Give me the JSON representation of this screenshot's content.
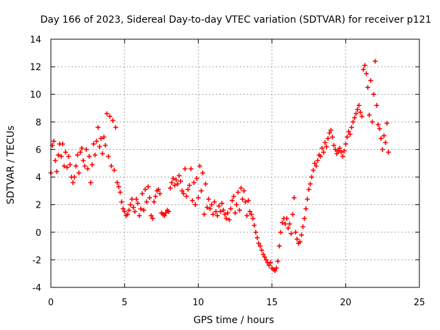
{
  "chart_data": {
    "type": "scatter",
    "title": "Day 166 of 2023, Sidereal Day-to-day VTEC variation (SDTVAR) for receiver p121",
    "xlabel": "GPS time / hours",
    "ylabel": "SDTVAR / TECUs",
    "xlim": [
      0,
      25
    ],
    "ylim": [
      -4,
      14
    ],
    "x_ticks": [
      "0",
      "5",
      "10",
      "15",
      "20",
      "25"
    ],
    "y_ticks": [
      "-4",
      "-2",
      "0",
      "2",
      "4",
      "6",
      "8",
      "10",
      "12",
      "14"
    ],
    "grid": true,
    "marker": "+",
    "color": "#ff0000",
    "series": [
      {
        "values": [
          [
            0.0,
            4.3
          ],
          [
            0.1,
            6.3
          ],
          [
            0.2,
            6.6
          ],
          [
            0.3,
            5.2
          ],
          [
            0.4,
            4.4
          ],
          [
            0.5,
            5.6
          ],
          [
            0.6,
            6.4
          ],
          [
            0.7,
            5.5
          ],
          [
            0.8,
            6.4
          ],
          [
            0.9,
            4.8
          ],
          [
            1.0,
            5.8
          ],
          [
            1.1,
            4.7
          ],
          [
            1.2,
            5.5
          ],
          [
            1.3,
            4.9
          ],
          [
            1.4,
            4.0
          ],
          [
            1.5,
            3.6
          ],
          [
            1.6,
            4.0
          ],
          [
            1.7,
            4.8
          ],
          [
            1.8,
            5.6
          ],
          [
            1.9,
            4.3
          ],
          [
            2.0,
            5.8
          ],
          [
            2.1,
            6.1
          ],
          [
            2.2,
            5.2
          ],
          [
            2.3,
            4.8
          ],
          [
            2.4,
            6.0
          ],
          [
            2.5,
            4.6
          ],
          [
            2.6,
            5.5
          ],
          [
            2.7,
            3.6
          ],
          [
            2.8,
            4.9
          ],
          [
            2.9,
            6.4
          ],
          [
            3.0,
            5.6
          ],
          [
            3.1,
            6.6
          ],
          [
            3.2,
            7.6
          ],
          [
            3.3,
            6.2
          ],
          [
            3.4,
            6.8
          ],
          [
            3.5,
            5.7
          ],
          [
            3.6,
            6.9
          ],
          [
            3.7,
            6.3
          ],
          [
            3.8,
            8.6
          ],
          [
            3.9,
            5.5
          ],
          [
            4.0,
            8.4
          ],
          [
            4.1,
            4.8
          ],
          [
            4.2,
            8.1
          ],
          [
            4.3,
            4.5
          ],
          [
            4.4,
            7.6
          ],
          [
            4.5,
            3.6
          ],
          [
            4.6,
            3.3
          ],
          [
            4.7,
            2.9
          ],
          [
            4.8,
            2.2
          ],
          [
            4.9,
            1.7
          ],
          [
            5.0,
            1.5
          ],
          [
            5.1,
            1.2
          ],
          [
            5.2,
            1.3
          ],
          [
            5.3,
            1.6
          ],
          [
            5.4,
            2.0
          ],
          [
            5.5,
            2.4
          ],
          [
            5.6,
            1.8
          ],
          [
            5.7,
            1.5
          ],
          [
            5.8,
            2.4
          ],
          [
            5.9,
            2.1
          ],
          [
            6.0,
            1.2
          ],
          [
            6.1,
            1.7
          ],
          [
            6.2,
            2.8
          ],
          [
            6.3,
            1.6
          ],
          [
            6.4,
            3.1
          ],
          [
            6.5,
            2.2
          ],
          [
            6.6,
            3.3
          ],
          [
            6.7,
            2.5
          ],
          [
            6.8,
            1.2
          ],
          [
            6.9,
            1.0
          ],
          [
            7.0,
            2.2
          ],
          [
            7.1,
            2.6
          ],
          [
            7.2,
            3.0
          ],
          [
            7.3,
            3.1
          ],
          [
            7.4,
            2.8
          ],
          [
            7.5,
            1.4
          ],
          [
            7.6,
            1.3
          ],
          [
            7.7,
            1.2
          ],
          [
            7.8,
            1.4
          ],
          [
            7.9,
            1.6
          ],
          [
            8.0,
            1.5
          ],
          [
            8.1,
            3.2
          ],
          [
            8.2,
            3.6
          ],
          [
            8.3,
            3.9
          ],
          [
            8.4,
            3.4
          ],
          [
            8.5,
            3.8
          ],
          [
            8.6,
            3.5
          ],
          [
            8.7,
            4.1
          ],
          [
            8.8,
            3.7
          ],
          [
            8.9,
            3.0
          ],
          [
            9.0,
            2.8
          ],
          [
            9.1,
            4.6
          ],
          [
            9.2,
            2.6
          ],
          [
            9.3,
            3.1
          ],
          [
            9.4,
            3.4
          ],
          [
            9.5,
            4.6
          ],
          [
            9.6,
            2.3
          ],
          [
            9.7,
            3.6
          ],
          [
            9.8,
            2.0
          ],
          [
            9.9,
            3.9
          ],
          [
            10.0,
            2.5
          ],
          [
            10.1,
            4.8
          ],
          [
            10.2,
            3.0
          ],
          [
            10.3,
            4.3
          ],
          [
            10.4,
            1.3
          ],
          [
            10.5,
            3.5
          ],
          [
            10.6,
            1.8
          ],
          [
            10.7,
            2.4
          ],
          [
            10.8,
            1.7
          ],
          [
            10.9,
            2.0
          ],
          [
            11.0,
            1.3
          ],
          [
            11.1,
            2.2
          ],
          [
            11.2,
            1.5
          ],
          [
            11.3,
            1.2
          ],
          [
            11.4,
            1.9
          ],
          [
            11.5,
            1.5
          ],
          [
            11.6,
            2.1
          ],
          [
            11.7,
            1.6
          ],
          [
            11.8,
            1.3
          ],
          [
            11.9,
            1.0
          ],
          [
            12.0,
            1.4
          ],
          [
            12.1,
            0.9
          ],
          [
            12.2,
            1.7
          ],
          [
            12.3,
            2.3
          ],
          [
            12.4,
            2.6
          ],
          [
            12.5,
            1.4
          ],
          [
            12.6,
            2.0
          ],
          [
            12.7,
            2.9
          ],
          [
            12.8,
            1.6
          ],
          [
            12.9,
            3.2
          ],
          [
            13.0,
            2.4
          ],
          [
            13.1,
            3.0
          ],
          [
            13.2,
            2.2
          ],
          [
            13.3,
            1.2
          ],
          [
            13.4,
            2.3
          ],
          [
            13.5,
            1.5
          ],
          [
            13.6,
            1.3
          ],
          [
            13.7,
            1.0
          ],
          [
            13.8,
            0.5
          ],
          [
            13.9,
            0.0
          ],
          [
            14.0,
            -0.4
          ],
          [
            14.1,
            -0.8
          ],
          [
            14.2,
            -1.0
          ],
          [
            14.3,
            -1.3
          ],
          [
            14.4,
            -1.6
          ],
          [
            14.5,
            -1.8
          ],
          [
            14.6,
            -2.0
          ],
          [
            14.7,
            -2.2
          ],
          [
            14.8,
            -2.4
          ],
          [
            14.9,
            -2.2
          ],
          [
            15.0,
            -2.6
          ],
          [
            15.1,
            -2.7
          ],
          [
            15.2,
            -2.8
          ],
          [
            15.3,
            -2.6
          ],
          [
            15.4,
            -2.1
          ],
          [
            15.5,
            -1.0
          ],
          [
            15.6,
            0.0
          ],
          [
            15.7,
            0.7
          ],
          [
            15.8,
            1.0
          ],
          [
            15.9,
            0.6
          ],
          [
            16.0,
            1.0
          ],
          [
            16.1,
            0.3
          ],
          [
            16.2,
            0.6
          ],
          [
            16.3,
            -0.1
          ],
          [
            16.4,
            1.3
          ],
          [
            16.5,
            2.5
          ],
          [
            16.6,
            0.0
          ],
          [
            16.7,
            -0.5
          ],
          [
            16.8,
            -0.8
          ],
          [
            16.9,
            -0.7
          ],
          [
            17.0,
            -0.2
          ],
          [
            17.1,
            0.4
          ],
          [
            17.2,
            1.0
          ],
          [
            17.3,
            1.7
          ],
          [
            17.4,
            2.4
          ],
          [
            17.5,
            3.1
          ],
          [
            17.6,
            3.5
          ],
          [
            17.7,
            4.0
          ],
          [
            17.8,
            4.5
          ],
          [
            17.9,
            5.0
          ],
          [
            18.0,
            4.8
          ],
          [
            18.1,
            5.2
          ],
          [
            18.2,
            5.6
          ],
          [
            18.3,
            5.5
          ],
          [
            18.4,
            6.1
          ],
          [
            18.5,
            5.8
          ],
          [
            18.6,
            6.5
          ],
          [
            18.7,
            6.2
          ],
          [
            18.8,
            6.8
          ],
          [
            18.9,
            7.2
          ],
          [
            19.0,
            7.4
          ],
          [
            19.1,
            6.9
          ],
          [
            19.2,
            6.3
          ],
          [
            19.3,
            6.0
          ],
          [
            19.4,
            5.7
          ],
          [
            19.5,
            5.9
          ],
          [
            19.6,
            6.1
          ],
          [
            19.7,
            5.8
          ],
          [
            19.8,
            5.5
          ],
          [
            19.9,
            5.9
          ],
          [
            20.0,
            6.4
          ],
          [
            20.1,
            6.9
          ],
          [
            20.2,
            7.3
          ],
          [
            20.3,
            7.1
          ],
          [
            20.4,
            7.6
          ],
          [
            20.5,
            8.0
          ],
          [
            20.6,
            8.3
          ],
          [
            20.7,
            8.6
          ],
          [
            20.8,
            8.9
          ],
          [
            20.9,
            9.2
          ],
          [
            21.0,
            8.7
          ],
          [
            21.1,
            8.4
          ],
          [
            21.2,
            11.8
          ],
          [
            21.3,
            12.1
          ],
          [
            21.4,
            11.5
          ],
          [
            21.5,
            10.5
          ],
          [
            21.6,
            8.5
          ],
          [
            21.7,
            11.0
          ],
          [
            21.8,
            8.0
          ],
          [
            21.9,
            10.0
          ],
          [
            22.0,
            12.4
          ],
          [
            22.1,
            9.2
          ],
          [
            22.2,
            7.8
          ],
          [
            22.3,
            7.5
          ],
          [
            22.4,
            6.8
          ],
          [
            22.5,
            6.0
          ],
          [
            22.6,
            7.0
          ],
          [
            22.7,
            6.5
          ],
          [
            22.8,
            7.9
          ],
          [
            22.9,
            5.8
          ]
        ]
      }
    ]
  }
}
